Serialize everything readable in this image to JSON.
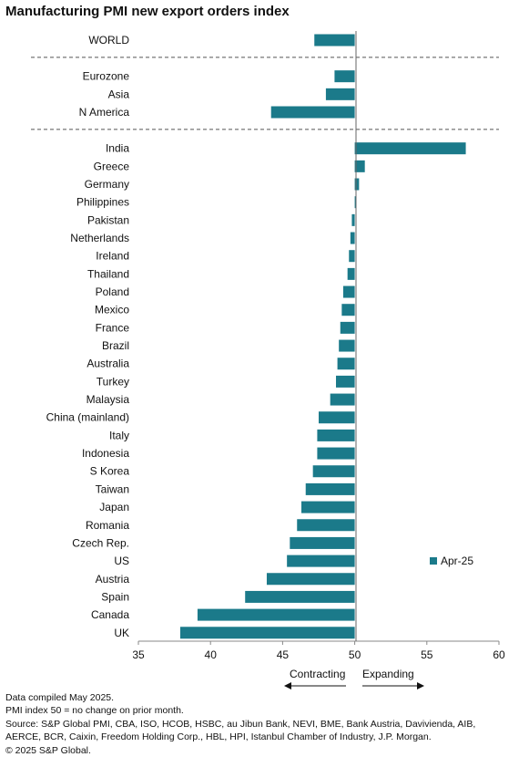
{
  "title": "Manufacturing PMI new export orders index",
  "chart_data": {
    "type": "bar",
    "orientation": "horizontal",
    "title": "Manufacturing PMI new export orders index",
    "baseline": 50,
    "xlim": [
      35,
      60
    ],
    "xticks": [
      35,
      40,
      45,
      50,
      55,
      60
    ],
    "groups": [
      {
        "categories": [
          "WORLD"
        ]
      },
      {
        "categories": [
          "Eurozone",
          "Asia",
          "N America"
        ]
      },
      {
        "categories": [
          "India",
          "Greece",
          "Germany",
          "Philippines",
          "Pakistan",
          "Netherlands",
          "Ireland",
          "Thailand",
          "Poland",
          "Mexico",
          "France",
          "Brazil",
          "Australia",
          "Turkey",
          "Malaysia",
          "China (mainland)",
          "Italy",
          "Indonesia",
          "S Korea",
          "Taiwan",
          "Japan",
          "Romania",
          "Czech Rep.",
          "US",
          "Austria",
          "Spain",
          "Canada",
          "UK"
        ]
      }
    ],
    "categories": [
      "WORLD",
      "Eurozone",
      "Asia",
      "N America",
      "India",
      "Greece",
      "Germany",
      "Philippines",
      "Pakistan",
      "Netherlands",
      "Ireland",
      "Thailand",
      "Poland",
      "Mexico",
      "France",
      "Brazil",
      "Australia",
      "Turkey",
      "Malaysia",
      "China (mainland)",
      "Italy",
      "Indonesia",
      "S Korea",
      "Taiwan",
      "Japan",
      "Romania",
      "Czech Rep.",
      "US",
      "Austria",
      "Spain",
      "Canada",
      "UK"
    ],
    "series": [
      {
        "name": "Apr-25",
        "color": "#1b7a8a",
        "values": [
          47.2,
          48.6,
          48.0,
          44.2,
          57.7,
          50.7,
          50.3,
          50.1,
          49.8,
          49.7,
          49.6,
          49.5,
          49.2,
          49.1,
          49.0,
          48.9,
          48.8,
          48.7,
          48.3,
          47.5,
          47.4,
          47.4,
          47.1,
          46.6,
          46.3,
          46.0,
          45.5,
          45.3,
          43.9,
          42.4,
          39.1,
          37.9
        ]
      }
    ],
    "legend": {
      "label": "Apr-25",
      "position": "right"
    },
    "annotations": {
      "left": "Contracting",
      "right": "Expanding"
    }
  },
  "footer": {
    "line1": "Data compiled May 2025.",
    "line2": "PMI index 50 = no change on prior month.",
    "line3": "Source: S&P Global PMI,  CBA, ISO, HCOB, HSBC, au Jibun Bank, NEVI, BME, Bank Austria, Davivienda, AIB,",
    "line4": "AERCE, BCR, Caixin, Freedom Holding Corp., HBL, HPI, Istanbul Chamber of Industry, J.P. Morgan.",
    "line5": "© 2025 S&P Global."
  }
}
